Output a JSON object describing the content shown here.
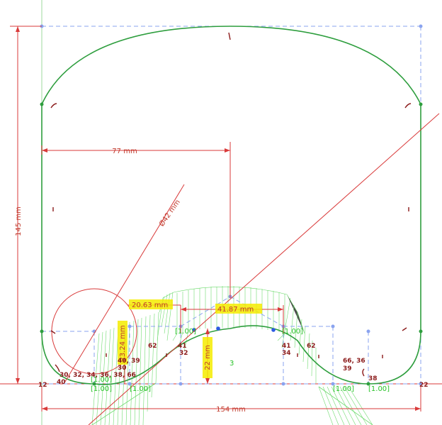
{
  "dimensions": {
    "height_145": "145 mm",
    "width_77": "77 mm",
    "diameter_42": "Ø42 mm",
    "dist_2063": "20.63 mm",
    "dist_4187": "41.87 mm",
    "dist_2324": "23.24 mm",
    "dist_22": "22 mm",
    "width_154": "154 mm"
  },
  "constraint_labels": {
    "c12_left": "12",
    "c40_left": "40",
    "c30_list": "30, 32, 34, 36, 38, 66",
    "c40_39": "40, 39",
    "c30": "30",
    "c62_left": "62",
    "c41_left": "41",
    "c32": "32",
    "c41_right": "41",
    "c34": "34",
    "c62_right": "62",
    "c66_36": "66, 36",
    "c39": "39",
    "c38": "38",
    "c22_right": "22",
    "c3": "3"
  },
  "spline_weights": {
    "w1": "[1.00]",
    "w2": "[1.00]",
    "w3": "[1.00]",
    "w4": "[1.00]",
    "w5": "[1.00]",
    "w6": "[1.00]",
    "w7": "[1.00]"
  },
  "colors": {
    "profile": "#2e9e3e",
    "dimension": "#d93a3a",
    "construction": "#8aa3ef",
    "highlight": "#f5ec00",
    "comb": "#33cc33"
  }
}
